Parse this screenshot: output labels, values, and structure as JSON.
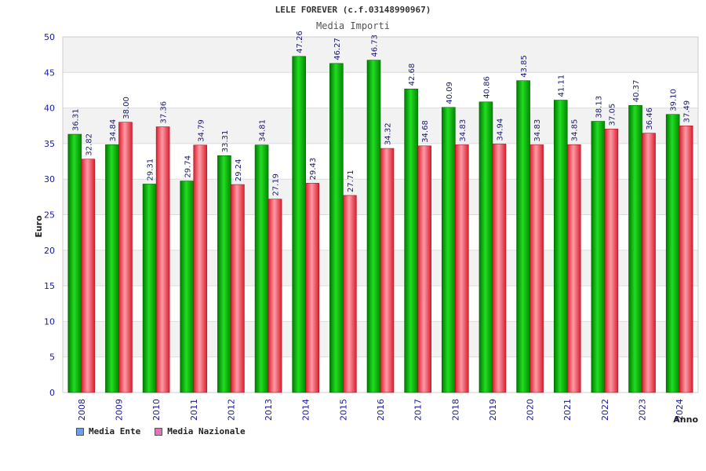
{
  "chart_data": {
    "type": "bar",
    "title": "LELE FOREVER (c.f.03148990967)",
    "subtitle": "Media Importi",
    "xlabel": "Anno",
    "ylabel": "Euro",
    "ylim": [
      0,
      50
    ],
    "yticks": [
      0,
      5,
      10,
      15,
      20,
      25,
      30,
      35,
      40,
      45,
      50
    ],
    "categories": [
      "2008",
      "2009",
      "2010",
      "2011",
      "2012",
      "2013",
      "2014",
      "2015",
      "2016",
      "2017",
      "2018",
      "2019",
      "2020",
      "2021",
      "2022",
      "2023",
      "2024"
    ],
    "series": [
      {
        "name": "Media Ente",
        "color": "#00b400",
        "legend_color": "#6aa0e8",
        "values": [
          36.31,
          34.84,
          29.31,
          29.74,
          33.31,
          34.81,
          47.26,
          46.27,
          46.73,
          42.68,
          40.09,
          40.86,
          43.85,
          41.11,
          38.13,
          40.37,
          39.1
        ],
        "labels": [
          "36.31",
          "34.84",
          "29.31",
          "29.74",
          "33.31",
          "34.81",
          "47.26",
          "46.27",
          "46.73",
          "42.68",
          "40.09",
          "40.86",
          "43.85",
          "41.11",
          "38.13",
          "40.37",
          "39.10"
        ]
      },
      {
        "name": "Media Nazionale",
        "color": "#e8384a",
        "legend_color": "#d878b8",
        "values": [
          32.82,
          38.0,
          37.36,
          34.79,
          29.24,
          27.19,
          29.43,
          27.71,
          34.32,
          34.68,
          34.83,
          34.94,
          34.83,
          34.85,
          37.05,
          36.46,
          37.49
        ],
        "labels": [
          "32.82",
          "38.00",
          "37.36",
          "34.79",
          "29.24",
          "27.19",
          "29.43",
          "27.71",
          "34.32",
          "34.68",
          "34.83",
          "34.94",
          "34.83",
          "34.85",
          "37.05",
          "36.46",
          "37.49"
        ]
      }
    ],
    "legend_placement": "bottom-left",
    "grid": true
  }
}
